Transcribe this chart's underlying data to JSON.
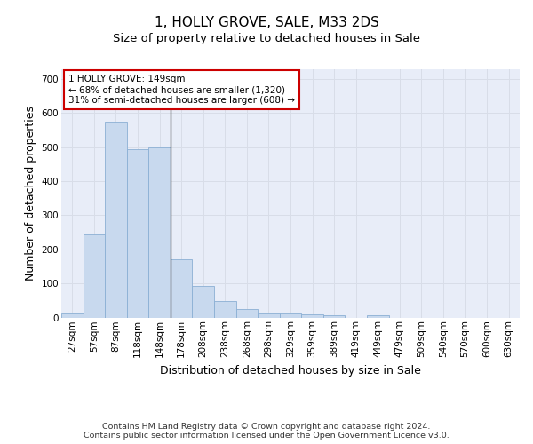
{
  "title": "1, HOLLY GROVE, SALE, M33 2DS",
  "subtitle": "Size of property relative to detached houses in Sale",
  "xlabel": "Distribution of detached houses by size in Sale",
  "ylabel": "Number of detached properties",
  "bin_labels": [
    "27sqm",
    "57sqm",
    "87sqm",
    "118sqm",
    "148sqm",
    "178sqm",
    "208sqm",
    "238sqm",
    "268sqm",
    "298sqm",
    "329sqm",
    "359sqm",
    "389sqm",
    "419sqm",
    "449sqm",
    "479sqm",
    "509sqm",
    "540sqm",
    "570sqm",
    "600sqm",
    "630sqm"
  ],
  "bar_heights": [
    12,
    243,
    575,
    495,
    498,
    170,
    93,
    49,
    24,
    12,
    12,
    9,
    6,
    0,
    7,
    0,
    0,
    0,
    0,
    0,
    0
  ],
  "bar_color": "#c8d9ee",
  "bar_edge_color": "#8bafd4",
  "vline_x_idx": 4,
  "vline_color": "#444444",
  "annotation_text": "1 HOLLY GROVE: 149sqm\n← 68% of detached houses are smaller (1,320)\n31% of semi-detached houses are larger (608) →",
  "annotation_box_color": "#ffffff",
  "annotation_box_edge": "#cc0000",
  "ylim": [
    0,
    730
  ],
  "yticks": [
    0,
    100,
    200,
    300,
    400,
    500,
    600,
    700
  ],
  "grid_color": "#d8dde8",
  "background_color": "#e8edf8",
  "footer_text": "Contains HM Land Registry data © Crown copyright and database right 2024.\nContains public sector information licensed under the Open Government Licence v3.0.",
  "title_fontsize": 11,
  "subtitle_fontsize": 9.5,
  "axis_label_fontsize": 9,
  "tick_fontsize": 7.5,
  "annotation_fontsize": 7.5,
  "footer_fontsize": 6.8
}
